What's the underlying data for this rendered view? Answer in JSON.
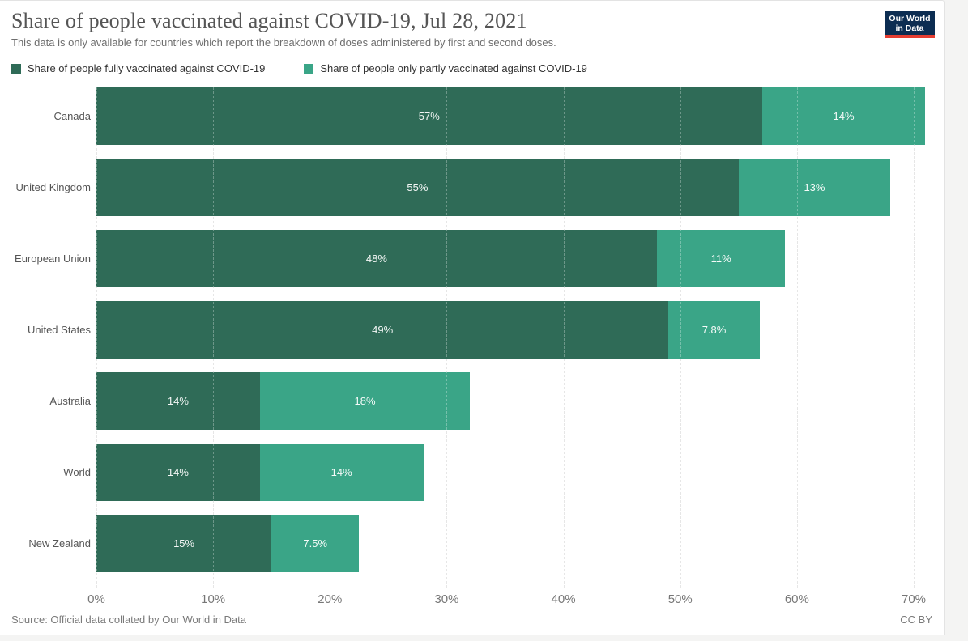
{
  "header": {
    "title": "Share of people vaccinated against COVID-19, Jul 28, 2021",
    "subtitle": "This data is only available for countries which report the breakdown of doses administered by first and second doses."
  },
  "logo": {
    "line1": "Our World",
    "line2": "in Data",
    "bg_color": "#0c2d52",
    "accent_color": "#e63e32"
  },
  "legend": [
    {
      "label": "Share of people fully vaccinated against COVID-19",
      "color": "#2f6b57"
    },
    {
      "label": "Share of people only partly vaccinated against COVID-19",
      "color": "#3aa587"
    }
  ],
  "chart_data": {
    "type": "bar",
    "orientation": "horizontal",
    "stacked": true,
    "title": "Share of people vaccinated against COVID-19, Jul 28, 2021",
    "xlabel": "",
    "ylabel": "",
    "categories": [
      "Canada",
      "United Kingdom",
      "European Union",
      "United States",
      "Australia",
      "World",
      "New Zealand"
    ],
    "series": [
      {
        "name": "Share of people fully vaccinated against COVID-19",
        "color": "#2f6b57",
        "values": [
          57,
          55,
          48,
          49,
          14,
          14,
          15
        ],
        "labels": [
          "57%",
          "55%",
          "48%",
          "49%",
          "14%",
          "14%",
          "15%"
        ]
      },
      {
        "name": "Share of people only partly vaccinated against COVID-19",
        "color": "#3aa587",
        "values": [
          14,
          13,
          11,
          7.8,
          18,
          14,
          7.5
        ],
        "labels": [
          "14%",
          "13%",
          "11%",
          "7.8%",
          "18%",
          "14%",
          "7.5%"
        ]
      }
    ],
    "xlim": [
      0,
      70
    ],
    "x_tick_values": [
      0,
      10,
      20,
      30,
      40,
      50,
      60,
      70
    ],
    "x_tick_labels": [
      "0%",
      "10%",
      "20%",
      "30%",
      "40%",
      "50%",
      "60%",
      "70%"
    ],
    "grid": "dashed-vertical",
    "legend_position": "top",
    "value_label_color": "#ffffff"
  },
  "footer": {
    "source": "Source: Official data collated by Our World in Data",
    "license": "CC BY"
  }
}
